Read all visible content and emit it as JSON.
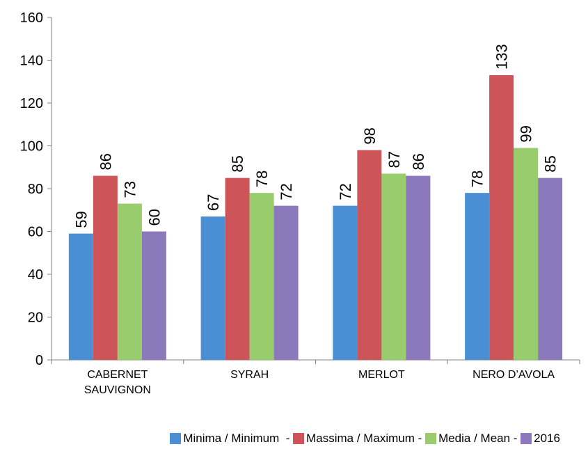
{
  "chart_data": {
    "type": "bar",
    "categories": [
      [
        "CABERNET",
        "SAUVIGNON"
      ],
      [
        "SYRAH"
      ],
      [
        "MERLOT"
      ],
      [
        "NERO D’AVOLA"
      ]
    ],
    "series": [
      {
        "name": "Minima / Minimum",
        "color": "#4a8fd3",
        "values": [
          59,
          67,
          72,
          78
        ]
      },
      {
        "name": "Massima / Maximum",
        "color": "#cd5458",
        "values": [
          86,
          85,
          98,
          133
        ]
      },
      {
        "name": "Media / Mean",
        "color": "#98cc6c",
        "values": [
          73,
          78,
          87,
          99
        ]
      },
      {
        "name": "2016",
        "color": "#8b79bb",
        "values": [
          60,
          72,
          86,
          85
        ]
      }
    ],
    "ylim": [
      0,
      160
    ],
    "yticks": [
      0,
      20,
      40,
      60,
      80,
      100,
      120,
      140,
      160
    ],
    "legend_separators": [
      "  - ",
      " - ",
      " - ",
      ""
    ],
    "legend_position": "bottom-right",
    "grid": false
  }
}
